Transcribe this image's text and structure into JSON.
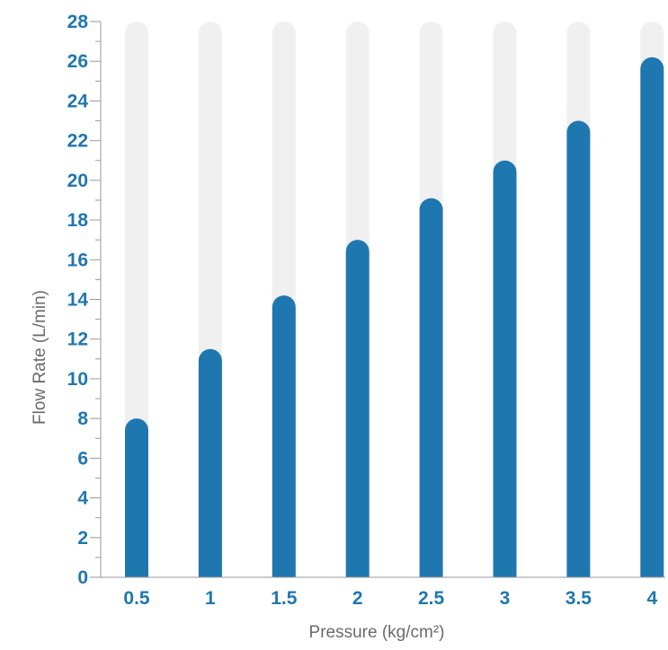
{
  "chart_data": {
    "type": "bar",
    "categories": [
      "0.5",
      "1",
      "1.5",
      "2",
      "2.5",
      "3",
      "3.5",
      "4"
    ],
    "values": [
      8,
      11.5,
      14.2,
      17,
      19.1,
      21,
      23,
      26.2
    ],
    "title": "",
    "xlabel": "Pressure (kg/cm²)",
    "ylabel": "Flow Rate (L/min)",
    "ylim": [
      0,
      28
    ],
    "yticks": [
      0,
      2,
      4,
      6,
      8,
      10,
      12,
      14,
      16,
      18,
      20,
      22,
      24,
      26,
      28
    ],
    "grid": false,
    "legend": "none",
    "colors": {
      "bar": "#1f77b0",
      "track": "#f0f0f0",
      "tick_text": "#1f77b0",
      "axis_title": "#6b6b6b",
      "axis_line": "#9a9a9a"
    }
  }
}
